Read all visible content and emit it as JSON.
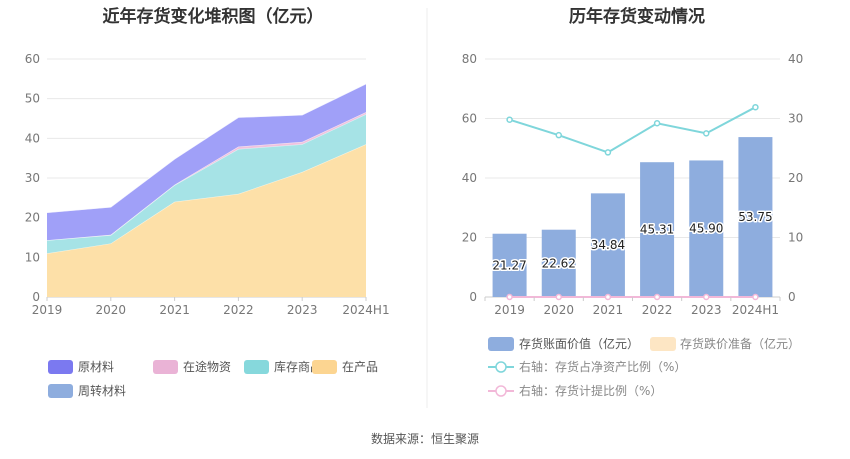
{
  "source_note": "数据来源：恒生聚源",
  "chart_data": [
    {
      "type": "area",
      "title": "近年存货变化堆积图（亿元）",
      "categories": [
        "2019",
        "2020",
        "2021",
        "2022",
        "2023",
        "2024H1"
      ],
      "ylim": [
        0,
        60
      ],
      "yticks": [
        0,
        10,
        20,
        30,
        40,
        50,
        60
      ],
      "stacked": true,
      "grid": true,
      "legend_position": "bottom",
      "series": [
        {
          "name": "在产品",
          "color": "#fde0a8",
          "values": [
            11.0,
            13.5,
            24.0,
            26.0,
            31.5,
            38.5
          ]
        },
        {
          "name": "库存商品",
          "color": "#a6e3e6",
          "values": [
            3.3,
            2.1,
            4.2,
            11.3,
            7.0,
            7.6
          ]
        },
        {
          "name": "在途物资",
          "color": "#f0c3df",
          "values": [
            0.0,
            0.1,
            0.1,
            0.6,
            0.6,
            0.5
          ]
        },
        {
          "name": "原材料",
          "color": "#a0a0f8",
          "values": [
            7.0,
            7.0,
            6.5,
            7.4,
            6.8,
            7.15
          ]
        },
        {
          "name": "周转材料",
          "color": "#8eadde",
          "values": [
            0.0,
            0.0,
            0.0,
            0.0,
            0.0,
            0.0
          ]
        }
      ],
      "legend": [
        {
          "name": "原材料",
          "color": "#7b79f0"
        },
        {
          "name": "在途物资",
          "color": "#eab3d6"
        },
        {
          "name": "库存商品",
          "color": "#86d8dc"
        },
        {
          "name": "在产品",
          "color": "#fcd591"
        },
        {
          "name": "周转材料",
          "color": "#8eadde"
        }
      ]
    },
    {
      "type": "bar",
      "title": "历年存货变动情况",
      "categories": [
        "2019",
        "2020",
        "2021",
        "2022",
        "2023",
        "2024H1"
      ],
      "ylim": [
        0,
        80
      ],
      "yticks": [
        0,
        20,
        40,
        60,
        80
      ],
      "y2lim": [
        0,
        40
      ],
      "y2ticks": [
        0,
        10,
        20,
        30,
        40
      ],
      "grid": true,
      "legend_position": "bottom",
      "series": [
        {
          "name": "存货账面价值（亿元）",
          "type": "bar",
          "axis": "left",
          "color": "#8eadde",
          "values": [
            21.27,
            22.62,
            34.84,
            45.31,
            45.9,
            53.75
          ],
          "labels": [
            "21.27",
            "22.62",
            "34.84",
            "45.31",
            "45.90",
            "53.75"
          ]
        },
        {
          "name": "存货跌价准备（亿元）",
          "type": "bar",
          "axis": "left",
          "color": "#fde6c4",
          "values": [
            0,
            0,
            0,
            0,
            0,
            0
          ]
        },
        {
          "name": "右轴：存货占净资产比例（%）",
          "type": "line",
          "axis": "right",
          "color": "#7fd6db",
          "values": [
            29.8,
            27.2,
            24.3,
            29.2,
            27.5,
            31.9
          ]
        },
        {
          "name": "右轴：存货计提比例（%）",
          "type": "line",
          "axis": "right",
          "color": "#f2b8d8",
          "values": [
            0,
            0,
            0,
            0,
            0,
            0
          ]
        }
      ]
    }
  ]
}
